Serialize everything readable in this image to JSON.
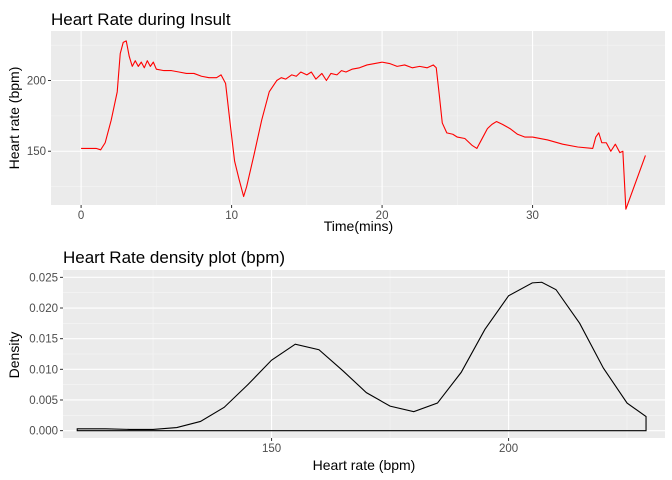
{
  "chart_data": [
    {
      "type": "line",
      "title": "Heart Rate during Insult",
      "xlabel": "Time(mins)",
      "ylabel": "Heart rate (bpm)",
      "xlim": [
        -2,
        38.8
      ],
      "ylim": [
        112,
        235
      ],
      "xticks": [
        0,
        10,
        20,
        30
      ],
      "yticks": [
        150,
        200
      ],
      "grid": true,
      "legend": "none",
      "series": [
        {
          "color": "#ff0000",
          "x": [
            0,
            0.5,
            1.0,
            1.3,
            1.6,
            2.0,
            2.4,
            2.6,
            2.8,
            3.0,
            3.2,
            3.4,
            3.6,
            3.8,
            4.0,
            4.2,
            4.4,
            4.6,
            4.8,
            5.0,
            5.5,
            6.0,
            6.5,
            7.0,
            7.5,
            8.0,
            8.5,
            9.0,
            9.3,
            9.6,
            9.9,
            10.2,
            10.5,
            10.8,
            11.0,
            11.5,
            12.0,
            12.5,
            13.0,
            13.3,
            13.6,
            14.0,
            14.3,
            14.6,
            15.0,
            15.3,
            15.6,
            16.0,
            16.3,
            16.6,
            17.0,
            17.3,
            17.6,
            18.0,
            18.5,
            19.0,
            19.5,
            20.0,
            20.5,
            21.0,
            21.5,
            22.0,
            22.5,
            23.0,
            23.4,
            23.6,
            23.8,
            24.0,
            24.3,
            24.7,
            25.0,
            25.5,
            26.0,
            26.3,
            26.6,
            27.0,
            27.3,
            27.6,
            28.0,
            28.5,
            29.0,
            29.5,
            30.0,
            31.0,
            32.0,
            33.0,
            34.0,
            34.2,
            34.4,
            34.6,
            34.9,
            35.2,
            35.5,
            35.8,
            36.0,
            36.2,
            37.5
          ],
          "y": [
            152,
            152,
            152,
            151,
            156,
            172,
            192,
            219,
            227,
            228,
            217,
            210,
            214,
            210,
            213,
            209,
            214,
            210,
            213,
            208,
            207,
            207,
            206,
            205,
            205,
            203,
            202,
            202,
            204,
            198,
            170,
            143,
            130,
            118,
            125,
            148,
            172,
            192,
            200,
            202,
            201,
            204,
            203,
            206,
            204,
            206,
            201,
            205,
            200,
            205,
            204,
            207,
            206,
            208,
            209,
            211,
            212,
            213,
            212,
            210,
            211,
            209,
            210,
            209,
            211,
            209,
            190,
            170,
            163,
            162,
            160,
            159,
            154,
            152,
            158,
            166,
            169,
            171,
            169,
            166,
            162,
            160,
            160,
            158,
            155,
            153,
            152,
            160,
            163,
            156,
            156,
            150,
            155,
            149,
            150,
            109,
            147
          ]
        }
      ]
    },
    {
      "type": "area",
      "title": "Heart Rate density plot (bpm)",
      "xlabel": "Heart rate (bpm)",
      "ylabel": "Density",
      "xlim": [
        106,
        233
      ],
      "ylim": [
        -0.0012,
        0.0262
      ],
      "xticks": [
        150,
        200
      ],
      "yticks": [
        0.0,
        0.005,
        0.01,
        0.015,
        0.02,
        0.025
      ],
      "ytick_labels": [
        "0.000",
        "0.005",
        "0.010",
        "0.015",
        "0.020",
        "0.025"
      ],
      "grid": true,
      "legend": "none",
      "series": [
        {
          "color": "#000000",
          "x": [
            109,
            115,
            120,
            125,
            130,
            135,
            140,
            145,
            150,
            155,
            160,
            165,
            170,
            175,
            180,
            185,
            190,
            195,
            200,
            205,
            207,
            210,
            215,
            220,
            225,
            229
          ],
          "y": [
            0.0003,
            0.0003,
            0.0002,
            0.0002,
            0.0005,
            0.0015,
            0.0038,
            0.0075,
            0.0115,
            0.0141,
            0.0132,
            0.0098,
            0.0062,
            0.004,
            0.0031,
            0.0045,
            0.0095,
            0.0165,
            0.022,
            0.0241,
            0.0242,
            0.023,
            0.0175,
            0.0102,
            0.0045,
            0.0023
          ]
        }
      ]
    }
  ]
}
